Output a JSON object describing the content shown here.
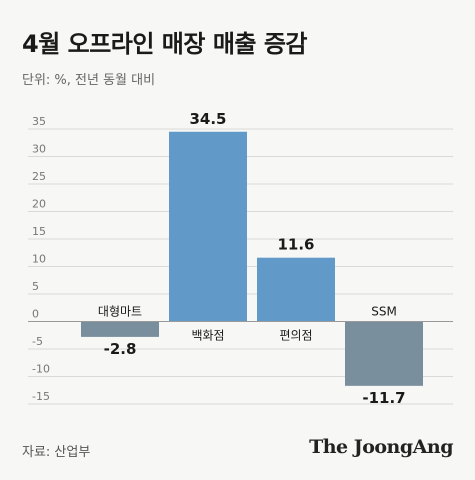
{
  "header": {
    "title": "4월 오프라인 매장 매출 증감",
    "unit": "단위: %, 전년 동월 대비"
  },
  "footer": {
    "source": "자료: 산업부",
    "brand": "The JoongAng"
  },
  "colors": {
    "positive_bar": "#6199c8",
    "negative_bar": "#7a8f9e",
    "grid": "#d9d9d9",
    "zero_line": "#999999",
    "background": "#f7f7f5"
  },
  "chart_data": {
    "type": "bar",
    "categories": [
      "대형마트",
      "백화점",
      "편의점",
      "SSM"
    ],
    "values": [
      -2.8,
      34.5,
      11.6,
      -11.7
    ],
    "value_labels": [
      "-2.8",
      "34.5",
      "11.6",
      "-11.7"
    ],
    "title": "4월 오프라인 매장 매출 증감",
    "xlabel": "",
    "ylabel": "",
    "ylim": [
      -15,
      35
    ],
    "yticks": [
      35,
      30,
      25,
      20,
      15,
      10,
      5,
      0,
      -5,
      -10,
      -15
    ],
    "ytick_labels": [
      "35",
      "30",
      "25",
      "20",
      "15",
      "10",
      "5",
      "0",
      "-5",
      "-10",
      "-15"
    ],
    "grid": true,
    "legend": "none"
  }
}
